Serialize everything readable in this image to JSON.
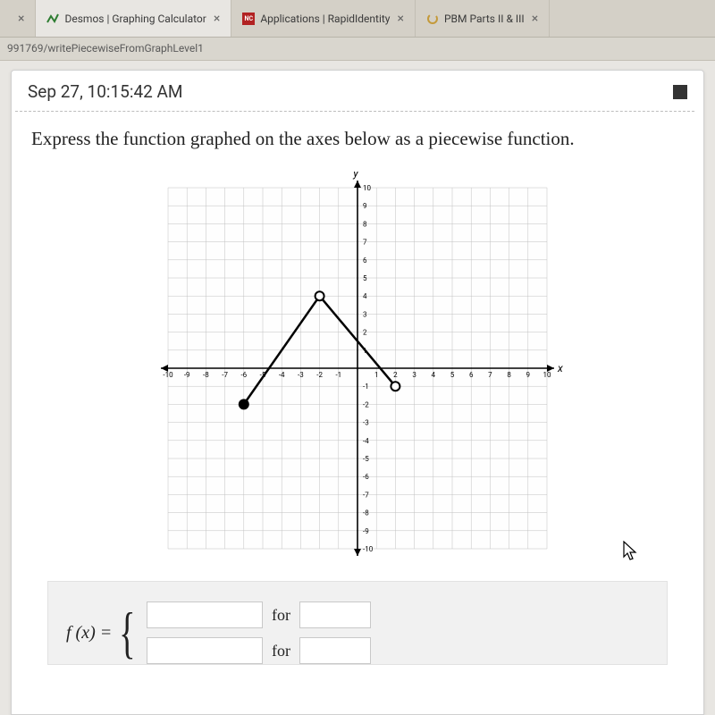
{
  "tabs": [
    {
      "title": "",
      "favicon_color": "",
      "close": "×"
    },
    {
      "title": "Desmos | Graphing Calculator",
      "favicon_color": "#2e7d32",
      "close": "×"
    },
    {
      "title": "Applications | RapidIdentity",
      "favicon_bg": "#b22222",
      "favicon_text": "NC",
      "close": "×"
    },
    {
      "title": "PBM Parts II & III",
      "favicon_loading": true,
      "close": "×"
    }
  ],
  "url_fragment": "991769/writePiecewiseFromGraphLevel1",
  "timestamp": "Sep 27, 10:15:42 AM",
  "prompt_text": "Express the function graphed on the axes below as a piecewise function.",
  "graph": {
    "type": "line-piecewise",
    "xlim": [
      -10,
      10
    ],
    "ylim": [
      -10,
      10
    ],
    "tick_step": 1,
    "x_axis_label": "x",
    "y_axis_label": "y",
    "background_color": "#fefefe",
    "grid_color": "#c0c0c0",
    "grid_emph_color": "#c0c0c0",
    "axis_color": "#000000",
    "line_color": "#000000",
    "line_width": 2.5,
    "tick_label_fontsize": 8,
    "axis_label_fontsize": 12,
    "segments": [
      {
        "from": [
          -6,
          -2
        ],
        "to": [
          -2,
          4
        ]
      },
      {
        "from": [
          -2,
          4
        ],
        "to": [
          2,
          -1
        ]
      }
    ],
    "points": [
      {
        "x": -6,
        "y": -2,
        "style": "closed"
      },
      {
        "x": -2,
        "y": 4,
        "style": "open"
      },
      {
        "x": 2,
        "y": -1,
        "style": "open"
      }
    ],
    "point_radius": 5,
    "point_fill_closed": "#000000",
    "point_fill_open": "#ffffff",
    "point_stroke": "#000000"
  },
  "answer": {
    "lhs": "f (x) =",
    "for_label": "for"
  },
  "colors": {
    "page_bg": "#ffffff",
    "shell_bg": "#e8e6e2",
    "answer_bg": "#f1f1f1"
  }
}
